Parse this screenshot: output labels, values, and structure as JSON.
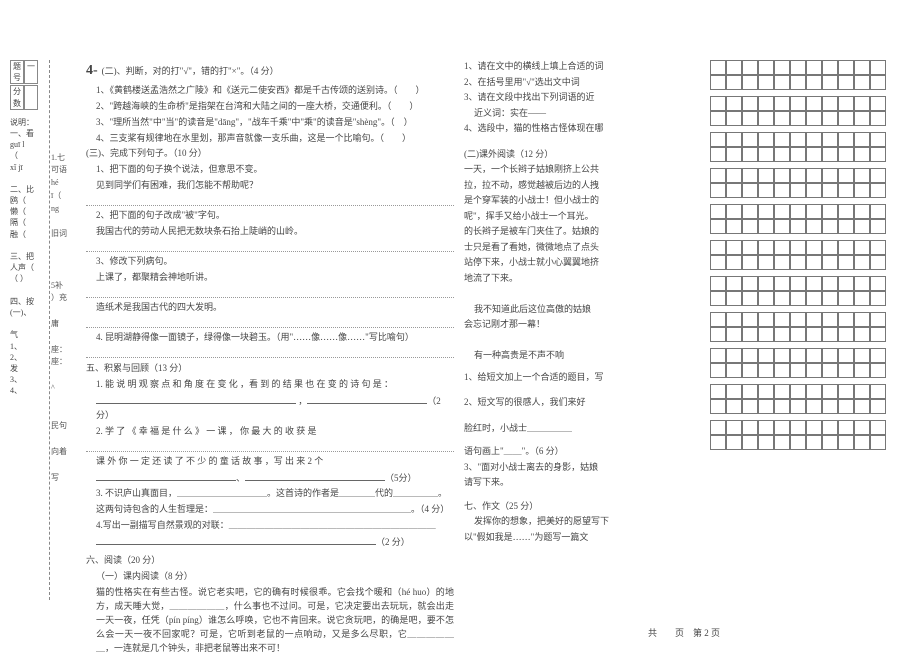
{
  "marker": "4-",
  "binding": {
    "row_labels": [
      "题号",
      "分数"
    ],
    "row_cells": [
      "一"
    ],
    "desc": "说明：",
    "items": [
      "一、看",
      "guī l",
      "（",
      "xǐ jī",
      "",
      "二、比",
      "鸥（",
      "懒（",
      "隔（",
      "融（",
      "",
      "三、把",
      "人声（",
      "（ ）",
      "",
      "四、按",
      "(一)、",
      "",
      "气",
      "1、",
      "2、",
      "发",
      "3、",
      "4、"
    ]
  },
  "left_labels": [
    "",
    "",
    "",
    "",
    "",
    "",
    "",
    "1.七",
    "可语",
    "hé",
    "ī（",
    "ng",
    "",
    "旧词",
    "",
    "",
    "",
    "5补",
    "）充",
    "",
    "庸",
    "",
    "座：",
    "座：",
    "",
    "^",
    "",
    "",
    "民句",
    "",
    "向着",
    "",
    "写"
  ],
  "main": {
    "s2_title": "(二)、判断，对的打\"√\"，错的打\"×\"。（4 分）",
    "s2_1": "1、《黄鹤楼送孟浩然之广陵》和《送元二使安西》都是千古传颂的送别诗。（　　）",
    "s2_2": "2、\"跨越海峡的生命桥\"是指架在台湾和大陆之间的一座大桥，交通便利。（　　）",
    "s2_3": "3、\"理所当然\"中\"当\"的读音是\"dāng\"，\"战车千乘\"中\"乘\"的读音是\"shèng\"。（　）",
    "s2_4": "4、三支桨有规律地在水里划，那声音就像一支乐曲，这是一个比喻句。（　　）",
    "s3_title": "(三)、完成下列句子。（10 分）",
    "s3_1": "1、把下面的句子换个说法，但意思不变。",
    "s3_1a": "见到同学们有困难，我们怎能不帮助呢？",
    "s3_2": "2、把下面的句子改成\"被\"字句。",
    "s3_2a": "我国古代的劳动人民把无数块条石抬上陡峭的山岭。",
    "s3_3": "3、修改下列病句。",
    "s3_3a": "上课了，都聚精会神地听讲。",
    "s3_3b": "造纸术是我国古代的四大发明。",
    "s3_4": "4. 昆明湖静得像一面镜子，绿得像一块碧玉。（用\"……像……像……\"写比喻句）",
    "s5_title": "五、积累与回顾（13 分）",
    "s5_1a": "1. 能 说 明 观 察 点 和 角 度 在 变 化 ，看 到 的 结 果 也 在 变 的 诗 句 是 ：",
    "s5_1b": "（2分）",
    "s5_2a": "2. 学 了 《 幸 福 是 什 么 》 一 课 ， 你 最 大 的 收 获 是",
    "s5_2c": "课 外 你 一 定 还 读 了 不 少 的 童 话 故 事 ，写 出 来 2 个",
    "s5_2d": "（5分）",
    "s5_3a": "3. 不识庐山真面目，＿＿＿＿＿＿＿＿＿＿。这首诗的作者是＿＿＿＿代的＿＿＿＿＿。",
    "s5_3b": "这两句诗包含的人生哲理是：＿＿＿＿＿＿＿＿＿＿＿＿＿＿＿＿＿＿＿＿＿＿。（4 分）",
    "s5_4a": "4.写出一副描写自然景观的对联：＿＿＿＿＿＿＿＿＿＿＿＿＿＿＿＿＿＿＿＿＿＿＿",
    "s5_4b": "（2 分）",
    "s6_title": "六、阅读（20 分）",
    "s6a_title": "（一）课内阅读（8 分）",
    "s6a_p1": "猫的性格实在有些古怪。说它老实吧，它的确有时候很乖。它会找个暖和（hé  huo）的地方，成天睡大觉，＿＿＿＿＿＿，什么事也不过问。可是，它决定要出去玩玩，就会出走一天一夜，任凭（pín  píng）谁怎么呼唤，它也不肯回来。说它贪玩吧，的确是吧，要不怎么会一天一夜不回家呢？可是，它听到老鼠的一点响动，又是多么尽职，它＿＿＿＿＿＿，一连就是几个钟头，非把老鼠等出来不可！"
  },
  "right": {
    "r1": "1、请在文中的横线上填上合适的词",
    "r2": "2、在括号里用\"√\"选出文中词",
    "r3": "3、请在文段中找出下列词语的近",
    "r3b": "近义词：实在——",
    "r4": "4、选段中，猫的性格古怪体现在哪",
    "s6b_title": "(二)课外阅读（12 分）",
    "p_l1": "一天，一个长辫子姑娘刚挤上公共",
    "p_l2": "拉，拉不动，感觉越被后边的人拽",
    "p_l3": "是个穿军装的小战士！但小战士的",
    "p_l4": "呢\"，挥手又给小战士一个耳光。",
    "p_l5": "的长辫子是被车门夹住了。姑娘的",
    "p_l6": "士只是看了看她，微微地点了点头",
    "p_l7": "站停下来，小战士就小心翼翼地挤",
    "p_l8": "地流了下来。",
    "p_gap": "　",
    "p_l9": "我不知道此后这位高傲的姑娘",
    "p_l10": "会忘记刚才那一幕！",
    "p_l11": "　",
    "p_l12": "有一种高贵是不声不响",
    "rq1": "1、给短文加上一个合适的题目，写",
    "rq2": "2、短文写的很感人，我们来好",
    "rq3a": "脸红时，小战士＿＿＿＿＿",
    "rq3b": "语句画上\"＿＿\"。（6 分）",
    "rq3c": "3、\"面对小战士离去的身影，姑娘",
    "rq3d": "请写下来。",
    "s7_title": "七、作文（25 分）",
    "s7_a": "发挥你的想象，把美好的愿望写下",
    "s7_b": "以\"假如我是……\"为题写一篇文"
  },
  "grid": {
    "rows_each": 2,
    "cols": 11,
    "blocks": 11
  },
  "footer": "共　　页　第 2 页"
}
